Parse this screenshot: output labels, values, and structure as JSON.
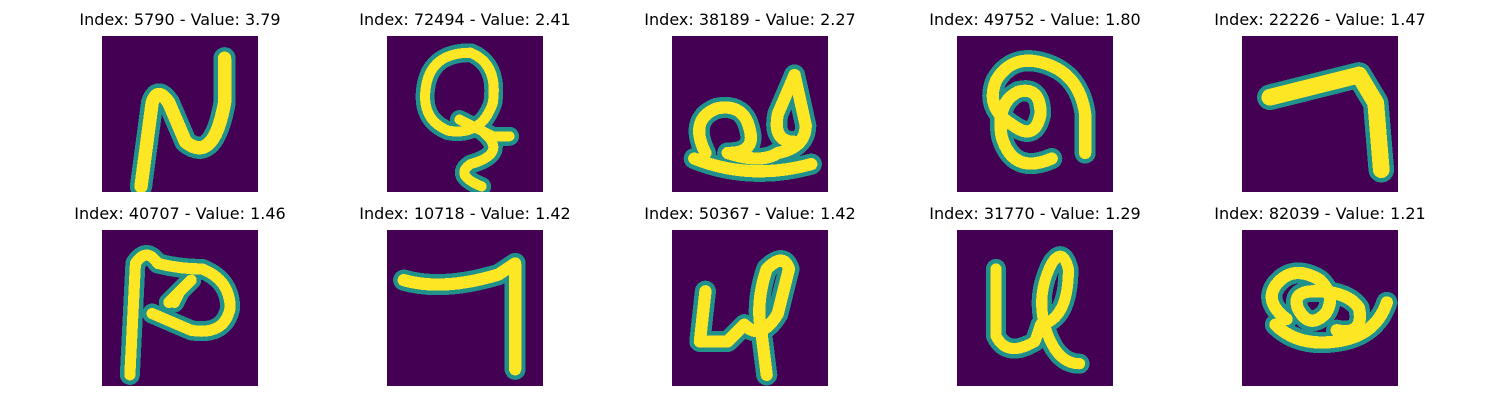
{
  "palette": {
    "background": "#440154",
    "edge": "#21918c",
    "mid": "#5ec962",
    "foreground": "#fde725"
  },
  "panels": [
    {
      "title": "Index: 5790 - Value: 3.79",
      "glyph": "digit-shape"
    },
    {
      "title": "Index: 72494 - Value: 2.41",
      "glyph": "loop-with-tail"
    },
    {
      "title": "Index: 38189 - Value: 2.27",
      "glyph": "double-loop"
    },
    {
      "title": "Index: 49752 - Value: 1.80",
      "glyph": "curl-shape"
    },
    {
      "title": "Index: 22226 - Value: 1.47",
      "glyph": "seven-shape"
    },
    {
      "title": "Index: 40707 - Value: 1.46",
      "glyph": "loop-with-stem"
    },
    {
      "title": "Index: 10718 - Value: 1.42",
      "glyph": "seven-shape"
    },
    {
      "title": "Index: 50367 - Value: 1.42",
      "glyph": "u-with-loop"
    },
    {
      "title": "Index: 31770 - Value: 1.29",
      "glyph": "u-with-loop"
    },
    {
      "title": "Index: 82039 - Value: 1.21",
      "glyph": "loop-shape"
    }
  ]
}
